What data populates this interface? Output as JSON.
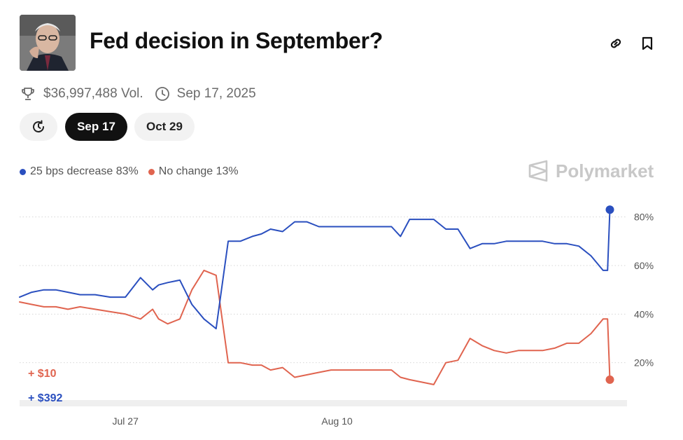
{
  "market": {
    "title": "Fed decision in September?",
    "volume": "$36,997,488 Vol.",
    "end_date": "Sep 17, 2025"
  },
  "icons": {
    "link": "link-icon",
    "bookmark": "bookmark-icon",
    "trophy": "trophy-icon",
    "clock": "clock-icon",
    "history": "history-icon"
  },
  "date_tabs": [
    {
      "label": "Sep 17",
      "active": true
    },
    {
      "label": "Oct 29",
      "active": false
    }
  ],
  "brand": "Polymarket",
  "bets": {
    "red": "+ $10",
    "blue": "+ $392"
  },
  "chart_data": {
    "type": "line",
    "x_unit": "days (Jul 20 = 0)",
    "xlim": [
      0,
      40
    ],
    "ylim": [
      0,
      90
    ],
    "y_ticks": [
      20,
      40,
      60,
      80
    ],
    "y_tick_labels": [
      "20%",
      "40%",
      "60%",
      "80%"
    ],
    "x_ticks": [
      7,
      21
    ],
    "x_tick_labels": [
      "Jul 27",
      "Aug 10"
    ],
    "grid": true,
    "legend_position": "top-left",
    "series": [
      {
        "name": "25 bps decrease",
        "legend_label": "25 bps decrease 83%",
        "color": "#2a4fbf",
        "x": [
          0,
          0.8,
          1.6,
          2.4,
          3.2,
          4,
          5,
          6,
          7,
          8,
          8.8,
          9.2,
          9.8,
          10.6,
          11.4,
          12.2,
          13,
          13.8,
          14.6,
          15.4,
          16,
          16.6,
          17.4,
          18.2,
          19,
          19.8,
          20.6,
          21.4,
          22.2,
          23,
          23.8,
          24.6,
          25.2,
          25.8,
          26.6,
          27.4,
          28.2,
          29,
          29.8,
          30.6,
          31.4,
          32.2,
          33,
          33.8,
          34.6,
          35.4,
          36.2,
          37,
          37.8,
          38.6,
          38.9,
          39.05
        ],
        "y": [
          47,
          49,
          50,
          50,
          49,
          48,
          48,
          47,
          47,
          55,
          50,
          52,
          53,
          54,
          44,
          38,
          34,
          70,
          70,
          72,
          73,
          75,
          74,
          78,
          78,
          76,
          76,
          76,
          76,
          76,
          76,
          76,
          72,
          79,
          79,
          79,
          75,
          75,
          67,
          69,
          69,
          70,
          70,
          70,
          70,
          69,
          69,
          68,
          64,
          58,
          58,
          83
        ]
      },
      {
        "name": "No change",
        "legend_label": "No change 13%",
        "color": "#e0644f",
        "x": [
          0,
          0.8,
          1.6,
          2.4,
          3.2,
          4,
          5,
          6,
          7,
          8,
          8.8,
          9.2,
          9.8,
          10.6,
          11.4,
          12.2,
          13,
          13.8,
          14.6,
          15.4,
          16,
          16.6,
          17.4,
          18.2,
          19,
          19.8,
          20.6,
          21.4,
          22.2,
          23,
          23.8,
          24.6,
          25.2,
          25.8,
          26.6,
          27.4,
          28.2,
          29,
          29.8,
          30.6,
          31.4,
          32.2,
          33,
          33.8,
          34.6,
          35.4,
          36.2,
          37,
          37.8,
          38.6,
          38.9,
          39.05
        ],
        "y": [
          45,
          44,
          43,
          43,
          42,
          43,
          42,
          41,
          40,
          38,
          42,
          38,
          36,
          38,
          50,
          58,
          56,
          20,
          20,
          19,
          19,
          17,
          18,
          14,
          15,
          16,
          17,
          17,
          17,
          17,
          17,
          17,
          14,
          13,
          12,
          11,
          20,
          21,
          30,
          27,
          25,
          24,
          25,
          25,
          25,
          26,
          28,
          28,
          32,
          38,
          38,
          13
        ]
      }
    ]
  }
}
